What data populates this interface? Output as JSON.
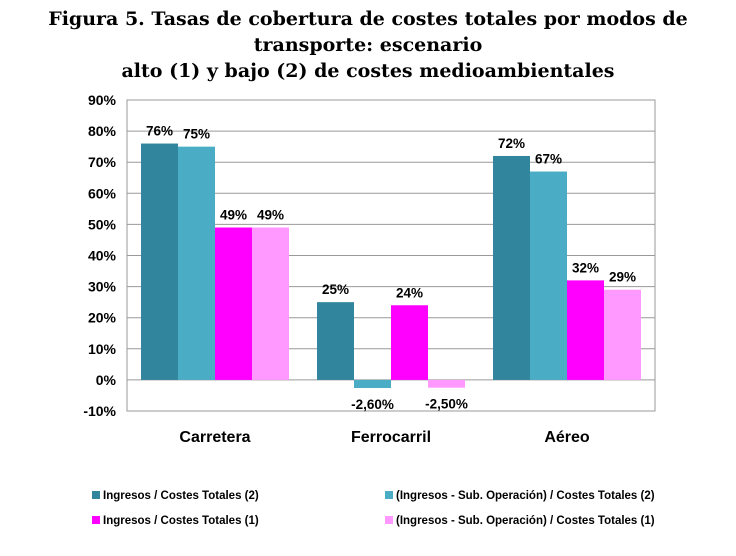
{
  "title": {
    "line1": "Figura 5. Tasas de cobertura de costes totales por modos de transporte: escenario",
    "line2": "alto (1) y bajo (2) de costes medioambientales"
  },
  "chart_data": {
    "type": "bar",
    "categories": [
      "Carretera",
      "Ferrocarril",
      "Aéreo"
    ],
    "series": [
      {
        "name": "Ingresos / Costes Totales (2)",
        "color": "#31859C",
        "values": [
          76,
          25,
          72
        ],
        "labels": [
          "76%",
          "25%",
          "72%"
        ]
      },
      {
        "name": "(Ingresos - Sub. Operación) / Costes Totales (2)",
        "color": "#4BACC6",
        "values": [
          75,
          -2.6,
          67
        ],
        "labels": [
          "75%",
          "-2,60%",
          "67%"
        ]
      },
      {
        "name": "Ingresos / Costes Totales (1)",
        "color": "#FF00FF",
        "values": [
          49,
          24,
          32
        ],
        "labels": [
          "49%",
          "24%",
          "32%"
        ]
      },
      {
        "name": "(Ingresos - Sub. Operación) / Costes Totales (1)",
        "color": "#FF99FF",
        "values": [
          49,
          -2.5,
          29
        ],
        "labels": [
          "49%",
          "-2,50%",
          "29%"
        ]
      }
    ],
    "ylim": [
      -10,
      90
    ],
    "yticks": [
      -10,
      0,
      10,
      20,
      30,
      40,
      50,
      60,
      70,
      80,
      90
    ],
    "ytick_labels": [
      "-10%",
      "0%",
      "10%",
      "20%",
      "30%",
      "40%",
      "50%",
      "60%",
      "70%",
      "80%",
      "90%"
    ],
    "xlabel": "",
    "ylabel": "",
    "grid": true,
    "legend_position": "bottom"
  }
}
